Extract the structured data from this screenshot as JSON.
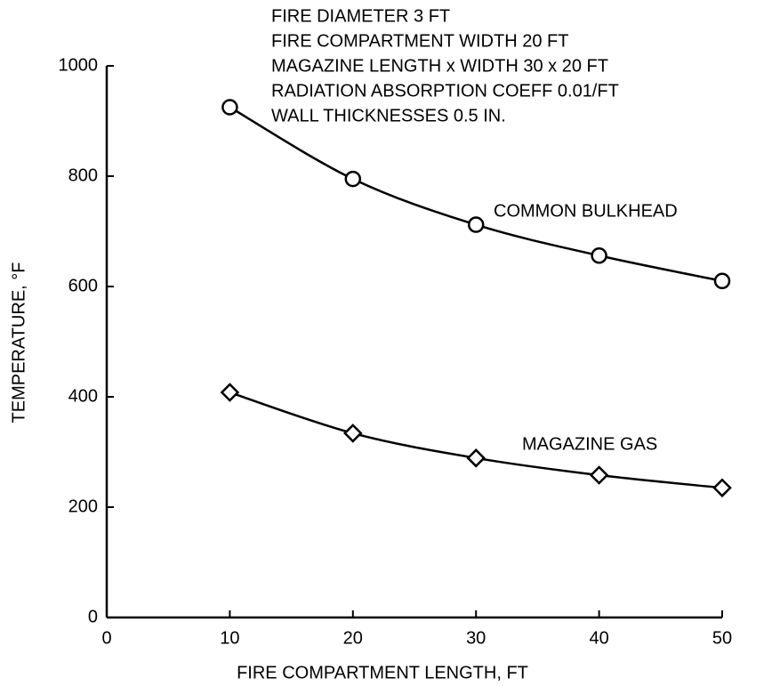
{
  "chart_data": {
    "type": "line",
    "annotations": [
      "FIRE DIAMETER 3 FT",
      "FIRE COMPARTMENT WIDTH 20 FT",
      "MAGAZINE LENGTH x WIDTH 30 x 20 FT",
      "RADIATION ABSORPTION COEFF 0.01/FT",
      "WALL THICKNESSES 0.5 IN."
    ],
    "x_label": "FIRE COMPARTMENT LENGTH, FT",
    "y_label": "TEMPERATURE, °F",
    "x": [
      10,
      20,
      30,
      40,
      50
    ],
    "series": [
      {
        "name": "COMMON BULKHEAD",
        "color": "#000000",
        "marker": "circle",
        "values": [
          925,
          795,
          712,
          656,
          610
        ]
      },
      {
        "name": "MAGAZINE GAS",
        "color": "#000000",
        "marker": "diamond",
        "values": [
          408,
          334,
          289,
          258,
          235
        ]
      }
    ],
    "xlim": [
      0,
      50
    ],
    "xticks": [
      0,
      10,
      20,
      30,
      40,
      50
    ],
    "ylim": [
      0,
      1000
    ],
    "yticks": [
      0,
      200,
      400,
      600,
      800,
      1000
    ],
    "grid": false
  }
}
